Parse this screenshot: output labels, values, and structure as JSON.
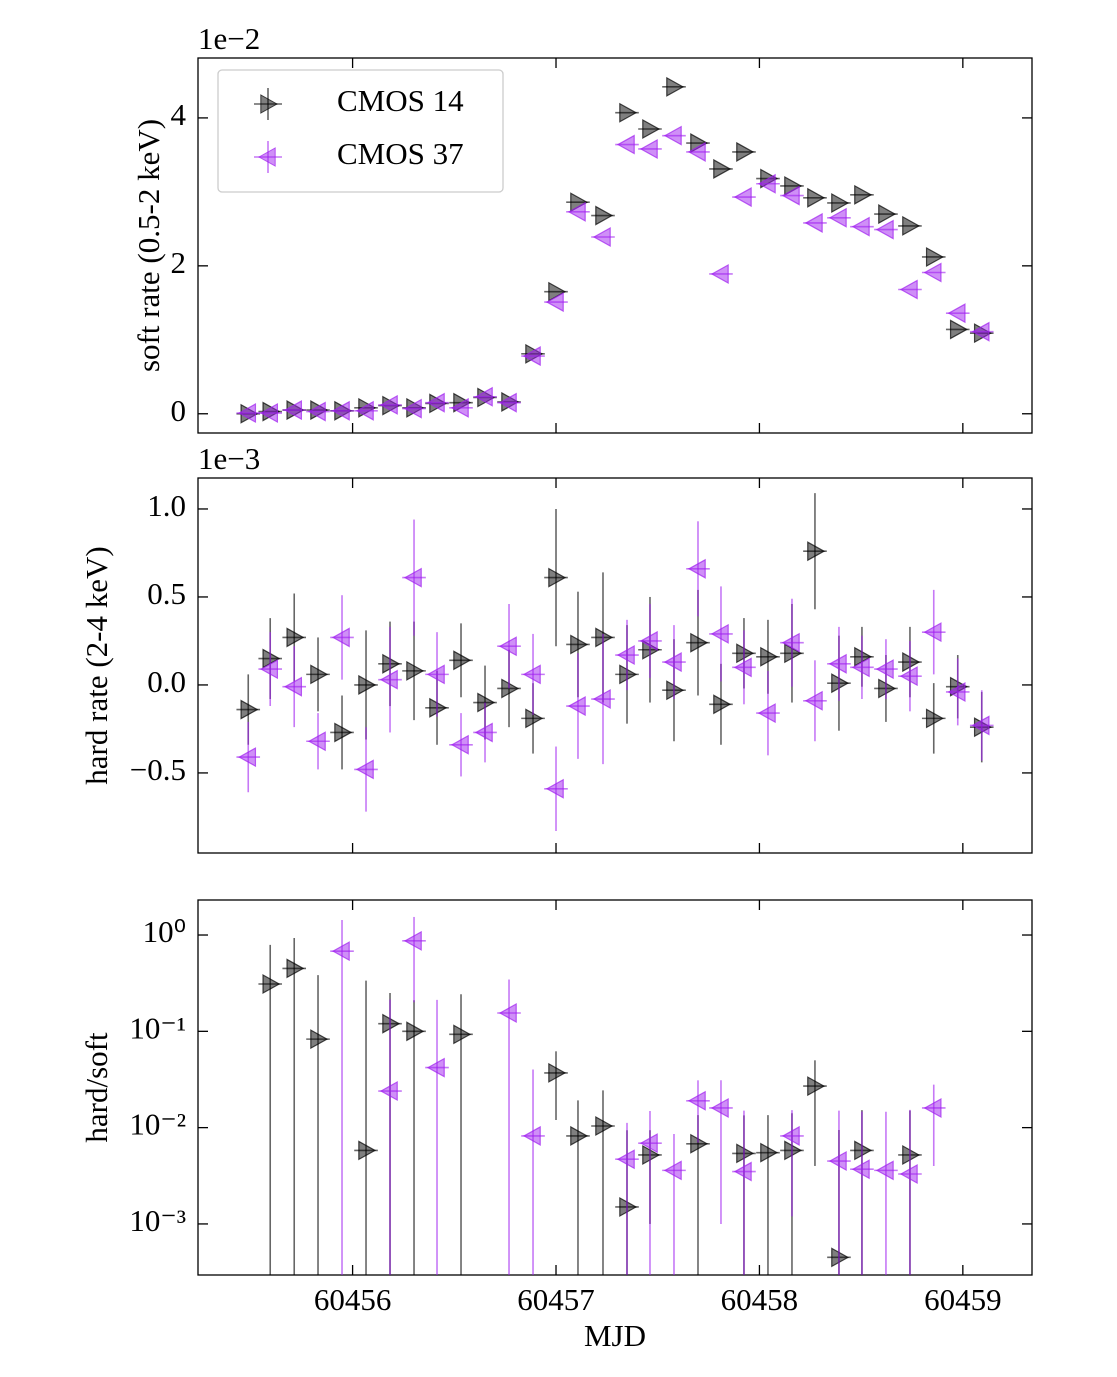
{
  "chart_data": [
    {
      "type": "errorbar",
      "ylabel": "soft rate (0.5-2 keV)",
      "offset_label": "1e−2",
      "xlim": [
        60455.24,
        60459.34
      ],
      "xticks": [
        60456,
        60457,
        60458,
        60459
      ],
      "xerr": 0.058,
      "ylim": [
        -0.26,
        4.81
      ],
      "yticks": [
        0,
        2,
        4
      ],
      "legend": "upper left",
      "x": [
        60455.487,
        60455.595,
        60455.713,
        60455.83,
        60455.948,
        60456.066,
        60456.184,
        60456.302,
        60456.415,
        60456.533,
        60456.651,
        60456.769,
        60456.887,
        60457.0,
        60457.108,
        60457.231,
        60457.349,
        60457.462,
        60457.58,
        60457.698,
        60457.811,
        60457.924,
        60458.042,
        60458.16,
        60458.273,
        60458.391,
        60458.504,
        60458.622,
        60458.74,
        60458.857,
        60458.975,
        60459.093
      ],
      "series": [
        {
          "name": "CMOS 14",
          "color": "#000000",
          "marker": "right",
          "values": [
            0.0,
            0.03,
            0.05,
            0.05,
            0.04,
            0.08,
            0.11,
            0.08,
            0.14,
            0.15,
            0.22,
            0.16,
            0.81,
            1.65,
            2.86,
            2.68,
            4.07,
            3.85,
            4.42,
            3.66,
            3.31,
            3.54,
            3.18,
            3.08,
            2.92,
            2.85,
            2.96,
            2.7,
            2.54,
            2.12,
            1.14,
            1.09
          ]
        },
        {
          "name": "CMOS 37",
          "color": "#a020f0",
          "marker": "left",
          "values": [
            0.01,
            0.01,
            0.05,
            0.03,
            0.04,
            0.04,
            0.12,
            0.07,
            0.15,
            0.08,
            0.23,
            0.15,
            0.78,
            1.51,
            2.73,
            2.39,
            3.64,
            3.58,
            3.76,
            3.54,
            1.89,
            2.93,
            3.11,
            2.95,
            2.58,
            2.65,
            2.53,
            2.49,
            1.68,
            1.91,
            1.36,
            1.11
          ]
        }
      ]
    },
    {
      "type": "errorbar",
      "ylabel": "hard rate (2-4 keV)",
      "offset_label": "1e−3",
      "xlim": [
        60455.24,
        60459.34
      ],
      "xticks": [
        60456,
        60457,
        60458,
        60459
      ],
      "xerr": 0.058,
      "ylim": [
        -0.955,
        1.176
      ],
      "yticks": [
        {
          "value": 1.0,
          "label": "1.0"
        },
        0.5,
        {
          "value": 0.0,
          "label": "0.0"
        },
        {
          "value": -0.5,
          "label": "−0.5"
        }
      ],
      "x": [
        60455.487,
        60455.595,
        60455.713,
        60455.83,
        60455.948,
        60456.066,
        60456.184,
        60456.302,
        60456.415,
        60456.533,
        60456.651,
        60456.769,
        60456.887,
        60457.0,
        60457.108,
        60457.231,
        60457.349,
        60457.462,
        60457.58,
        60457.698,
        60457.811,
        60457.924,
        60458.042,
        60458.16,
        60458.273,
        60458.391,
        60458.504,
        60458.622,
        60458.74,
        60458.857,
        60458.975,
        60459.093
      ],
      "series": [
        {
          "name": "CMOS 14",
          "color": "#000000",
          "marker": "right",
          "values": [
            -0.14,
            0.15,
            0.27,
            0.06,
            -0.27,
            0.0,
            0.12,
            0.08,
            -0.13,
            0.14,
            -0.1,
            -0.02,
            -0.19,
            0.61,
            0.23,
            0.27,
            0.06,
            0.2,
            -0.03,
            0.24,
            -0.11,
            0.18,
            0.16,
            0.18,
            0.76,
            0.01,
            0.16,
            -0.02,
            0.13,
            -0.19,
            -0.01,
            -0.24
          ],
          "yerr": [
            0.2,
            0.23,
            0.25,
            0.21,
            0.21,
            0.31,
            0.24,
            0.28,
            0.21,
            0.21,
            0.21,
            0.22,
            0.2,
            0.39,
            0.3,
            0.37,
            0.28,
            0.3,
            0.29,
            0.3,
            0.23,
            0.2,
            0.21,
            0.28,
            0.33,
            0.27,
            0.17,
            0.19,
            0.2,
            0.2,
            0.18,
            0.2
          ]
        },
        {
          "name": "CMOS 37",
          "color": "#a020f0",
          "marker": "left",
          "values": [
            -0.41,
            0.09,
            -0.01,
            -0.32,
            0.27,
            -0.48,
            0.03,
            0.61,
            0.06,
            -0.34,
            -0.27,
            0.22,
            0.06,
            -0.59,
            -0.12,
            -0.08,
            0.17,
            0.25,
            0.13,
            0.66,
            0.29,
            0.1,
            -0.16,
            0.24,
            -0.09,
            0.12,
            0.1,
            0.09,
            0.05,
            0.3,
            -0.04,
            -0.23
          ],
          "yerr": [
            0.2,
            0.21,
            0.23,
            0.16,
            0.24,
            0.24,
            0.3,
            0.33,
            0.24,
            0.18,
            0.17,
            0.24,
            0.23,
            0.24,
            0.3,
            0.37,
            0.2,
            0.21,
            0.21,
            0.27,
            0.27,
            0.21,
            0.24,
            0.25,
            0.23,
            0.21,
            0.18,
            0.17,
            0.2,
            0.24,
            0.19,
            0.2
          ]
        }
      ]
    },
    {
      "type": "errorbar",
      "ylabel": "hard/soft",
      "xlabel": "MJD",
      "yscale": "log",
      "xlim": [
        60455.24,
        60459.34
      ],
      "xticks": [
        60456,
        60457,
        60458,
        60459
      ],
      "xerr": 0.058,
      "ylim": [
        0.000295,
        2.31
      ],
      "yticks": [
        {
          "value": 1,
          "label": "10⁰"
        },
        {
          "value": 0.1,
          "label": "10⁻¹"
        },
        {
          "value": 0.01,
          "label": "10⁻²"
        },
        {
          "value": 0.001,
          "label": "10⁻³"
        }
      ],
      "x": [
        60455.487,
        60455.595,
        60455.713,
        60455.83,
        60455.948,
        60456.066,
        60456.184,
        60456.302,
        60456.415,
        60456.533,
        60456.651,
        60456.769,
        60456.887,
        60457.0,
        60457.108,
        60457.231,
        60457.349,
        60457.462,
        60457.58,
        60457.698,
        60457.811,
        60457.924,
        60458.042,
        60458.16,
        60458.273,
        60458.391,
        60458.504,
        60458.622,
        60458.74,
        60458.857,
        60458.975,
        60459.093
      ],
      "series": [
        {
          "name": "CMOS 14",
          "color": "#000000",
          "marker": "right",
          "values": [
            null,
            0.31,
            0.45,
            0.083,
            null,
            0.0058,
            0.12,
            0.1,
            null,
            0.093,
            null,
            null,
            null,
            0.037,
            0.0082,
            0.0104,
            0.0015,
            0.0052,
            null,
            0.0068,
            null,
            0.0054,
            0.0055,
            0.0058,
            0.027,
            0.00045,
            0.0058,
            null,
            0.0052,
            null,
            null,
            null
          ],
          "yerr": [
            null,
            0.48,
            0.48,
            0.3,
            null,
            0.33,
            0.13,
            0.11,
            null,
            0.15,
            null,
            null,
            null,
            0.025,
            0.011,
            0.014,
            0.0079,
            0.0042,
            null,
            0.0067,
            null,
            0.008,
            0.008,
            0.0083,
            0.023,
            0.009,
            0.0094,
            null,
            0.0098,
            null,
            null,
            null
          ]
        },
        {
          "name": "CMOS 37",
          "color": "#a020f0",
          "marker": "left",
          "values": [
            null,
            null,
            null,
            null,
            0.68,
            null,
            0.024,
            0.87,
            0.042,
            null,
            null,
            0.155,
            0.0082,
            null,
            null,
            null,
            0.0047,
            0.0069,
            0.0036,
            0.019,
            0.016,
            0.0035,
            null,
            0.0082,
            null,
            0.0045,
            0.0037,
            0.0036,
            0.0033,
            0.016,
            null,
            null
          ],
          "yerr": [
            null,
            null,
            null,
            null,
            0.75,
            null,
            0.19,
            0.67,
            0.17,
            null,
            null,
            0.19,
            0.032,
            null,
            null,
            null,
            0.0065,
            0.008,
            0.005,
            0.012,
            0.015,
            0.0115,
            null,
            0.007,
            null,
            0.0105,
            0.011,
            0.011,
            0.012,
            0.012,
            null,
            null
          ]
        }
      ]
    }
  ]
}
